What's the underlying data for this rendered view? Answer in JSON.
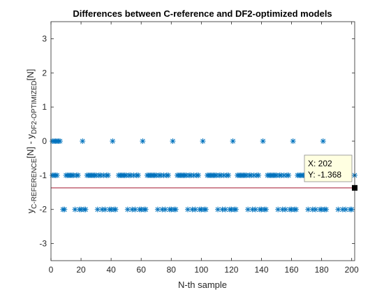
{
  "chart_data": {
    "type": "scatter",
    "title": "Differences between C-reference and DF2-optimized models",
    "xlabel": "N-th sample",
    "ylabel": {
      "parts": [
        {
          "text": "y",
          "sub": false
        },
        {
          "text": "C-REFERENCE",
          "sub": true
        },
        {
          "text": "[N] - y",
          "sub": false
        },
        {
          "text": "DF2-OPTIMIZED",
          "sub": true
        },
        {
          "text": "[N]",
          "sub": false
        }
      ]
    },
    "xlim": [
      0,
      202
    ],
    "ylim": [
      -3.5,
      3.5
    ],
    "xticks": [
      0,
      20,
      40,
      60,
      80,
      100,
      120,
      140,
      160,
      180,
      200
    ],
    "yticks": [
      -3,
      -2,
      -1,
      0,
      1,
      2,
      3
    ],
    "marker": "*",
    "marker_color": "#0072BD",
    "grid": false,
    "series": [
      {
        "values_by_level": {
          "0": [
            1,
            2,
            3,
            4,
            5,
            6,
            21,
            41,
            61,
            81,
            101,
            121,
            141,
            161,
            181
          ],
          "-1": [
            1,
            2,
            3,
            4,
            10,
            11,
            12,
            13,
            14,
            15,
            17,
            18,
            24,
            25,
            26,
            27,
            28,
            29,
            30,
            32,
            33,
            35,
            37,
            38,
            45,
            46,
            47,
            48,
            49,
            50,
            52,
            53,
            55,
            57,
            58,
            64,
            65,
            66,
            67,
            68,
            69,
            70,
            72,
            73,
            75,
            77,
            78,
            84,
            85,
            86,
            87,
            88,
            89,
            90,
            92,
            93,
            95,
            97,
            98,
            104,
            105,
            106,
            107,
            108,
            109,
            110,
            112,
            113,
            115,
            117,
            118,
            124,
            125,
            126,
            127,
            128,
            129,
            130,
            132,
            133,
            135,
            137,
            138,
            144,
            145,
            146,
            147,
            148,
            149,
            150,
            152,
            153,
            155,
            157,
            158,
            164,
            165,
            166,
            167,
            168,
            169,
            170,
            172,
            173,
            175,
            177,
            178,
            184,
            185,
            186,
            187,
            188,
            189,
            190,
            192,
            193,
            195,
            197,
            198,
            202
          ],
          "-2": [
            8,
            9,
            16,
            19,
            20,
            22,
            23,
            31,
            34,
            36,
            39,
            40,
            42,
            43,
            51,
            54,
            56,
            59,
            60,
            62,
            63,
            71,
            74,
            76,
            79,
            80,
            82,
            83,
            91,
            94,
            96,
            99,
            100,
            102,
            103,
            111,
            114,
            116,
            119,
            120,
            122,
            123,
            131,
            134,
            136,
            139,
            140,
            142,
            143,
            151,
            154,
            156,
            159,
            160,
            162,
            163,
            171,
            174,
            176,
            179,
            180,
            182,
            183,
            191,
            194,
            196,
            199,
            200
          ]
        }
      }
    ],
    "reference_line": {
      "y": -1.368,
      "color": "#A2142F"
    },
    "datatip": {
      "x": 202,
      "y": -1.368,
      "label_x": "X: 202",
      "label_y": "Y: -1.368"
    }
  }
}
